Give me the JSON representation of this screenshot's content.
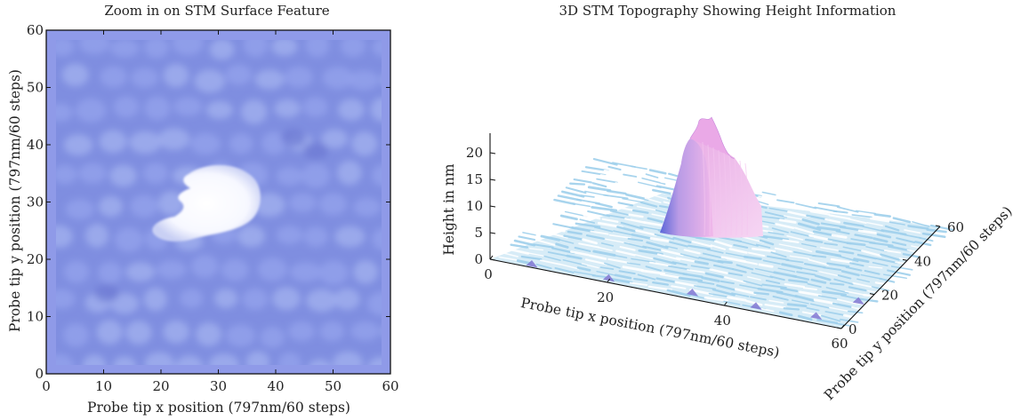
{
  "chart_data": [
    {
      "type": "heatmap",
      "title": "Zoom in on STM Surface Feature",
      "xlabel": "Probe tip x position (797nm/60 steps)",
      "ylabel": "Probe tip y position (797nm/60 steps)",
      "xlim": [
        0,
        60
      ],
      "ylim": [
        0,
        60
      ],
      "x_ticks": [
        "0",
        "10",
        "20",
        "30",
        "40",
        "50",
        "60"
      ],
      "y_ticks": [
        "0",
        "10",
        "20",
        "30",
        "40",
        "50",
        "60"
      ],
      "feature": {
        "x_center": 28,
        "y_center": 30,
        "x_range": [
          19,
          38
        ],
        "y_range": [
          24,
          36
        ]
      },
      "colors": {
        "background": "#7f8ee0",
        "feature": "#ffffff"
      }
    },
    {
      "type": "surface",
      "title": "3D STM Topography Showing Height Information",
      "xlabel": "Probe tip x position (797nm/60 steps)",
      "ylabel": "Probe tip y position (797nm/60 steps)",
      "zlabel": "Height in nm",
      "xlim": [
        0,
        60
      ],
      "ylim": [
        0,
        60
      ],
      "zlim": [
        0,
        22
      ],
      "x_ticks": [
        "0",
        "20",
        "40",
        "60"
      ],
      "y_ticks": [
        "0",
        "20",
        "40",
        "60"
      ],
      "z_ticks": [
        "0",
        "5",
        "10",
        "15",
        "20"
      ],
      "peak": {
        "x": 29,
        "y": 32,
        "height": 21
      },
      "colors": {
        "surface_low": "#cfe8f6",
        "surface_high": "#e8a9e6",
        "flank": "#6b72d8"
      }
    }
  ]
}
